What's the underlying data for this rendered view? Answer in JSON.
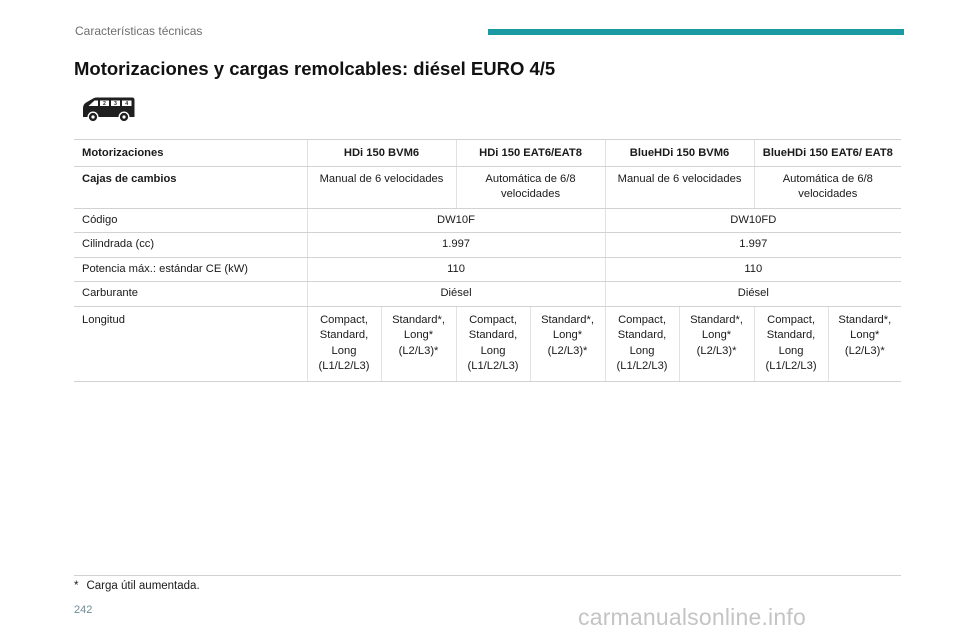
{
  "header": {
    "section": "Características técnicas",
    "accent_color": "#1a9aa0"
  },
  "title": "Motorizaciones y cargas remolcables: diésel EURO 4/5",
  "vehicle_icon": {
    "name": "van-icon",
    "badges": [
      "2",
      "3",
      "4"
    ]
  },
  "table": {
    "header": {
      "label": "Motorizaciones",
      "engines": [
        "HDi 150 BVM6",
        "HDi 150 EAT6/EAT8",
        "BlueHDi 150 BVM6",
        "BlueHDi 150 EAT6/ EAT8"
      ]
    },
    "gearbox": {
      "label": "Cajas de cambios",
      "values": [
        "Manual de 6 velocidades",
        "Automática de 6/8 velocidades",
        "Manual de 6 velocidades",
        "Automática de 6/8 velocidades"
      ]
    },
    "merged_rows": [
      {
        "label": "Código",
        "values": [
          "DW10F",
          "DW10FD"
        ]
      },
      {
        "label": "Cilindrada (cc)",
        "values": [
          "1.997",
          "1.997"
        ]
      },
      {
        "label": "Potencia máx.: estándar CE (kW)",
        "values": [
          "110",
          "110"
        ]
      },
      {
        "label": "Carburante",
        "values": [
          "Diésel",
          "Diésel"
        ]
      }
    ],
    "length": {
      "label": "Longitud",
      "values": [
        "Compact, Standard, Long (L1/L2/L3)",
        "Standard*, Long* (L2/L3)*",
        "Compact, Standard, Long (L1/L2/L3)",
        "Standard*, Long* (L2/L3)*",
        "Compact, Standard, Long (L1/L2/L3)",
        "Standard*, Long* (L2/L3)*",
        "Compact, Standard, Long (L1/L2/L3)",
        "Standard*, Long* (L2/L3)*"
      ]
    }
  },
  "footnote": {
    "mark": "*",
    "text": "Carga útil aumentada."
  },
  "page_number": "242",
  "watermark": "carmanualsonline.info"
}
